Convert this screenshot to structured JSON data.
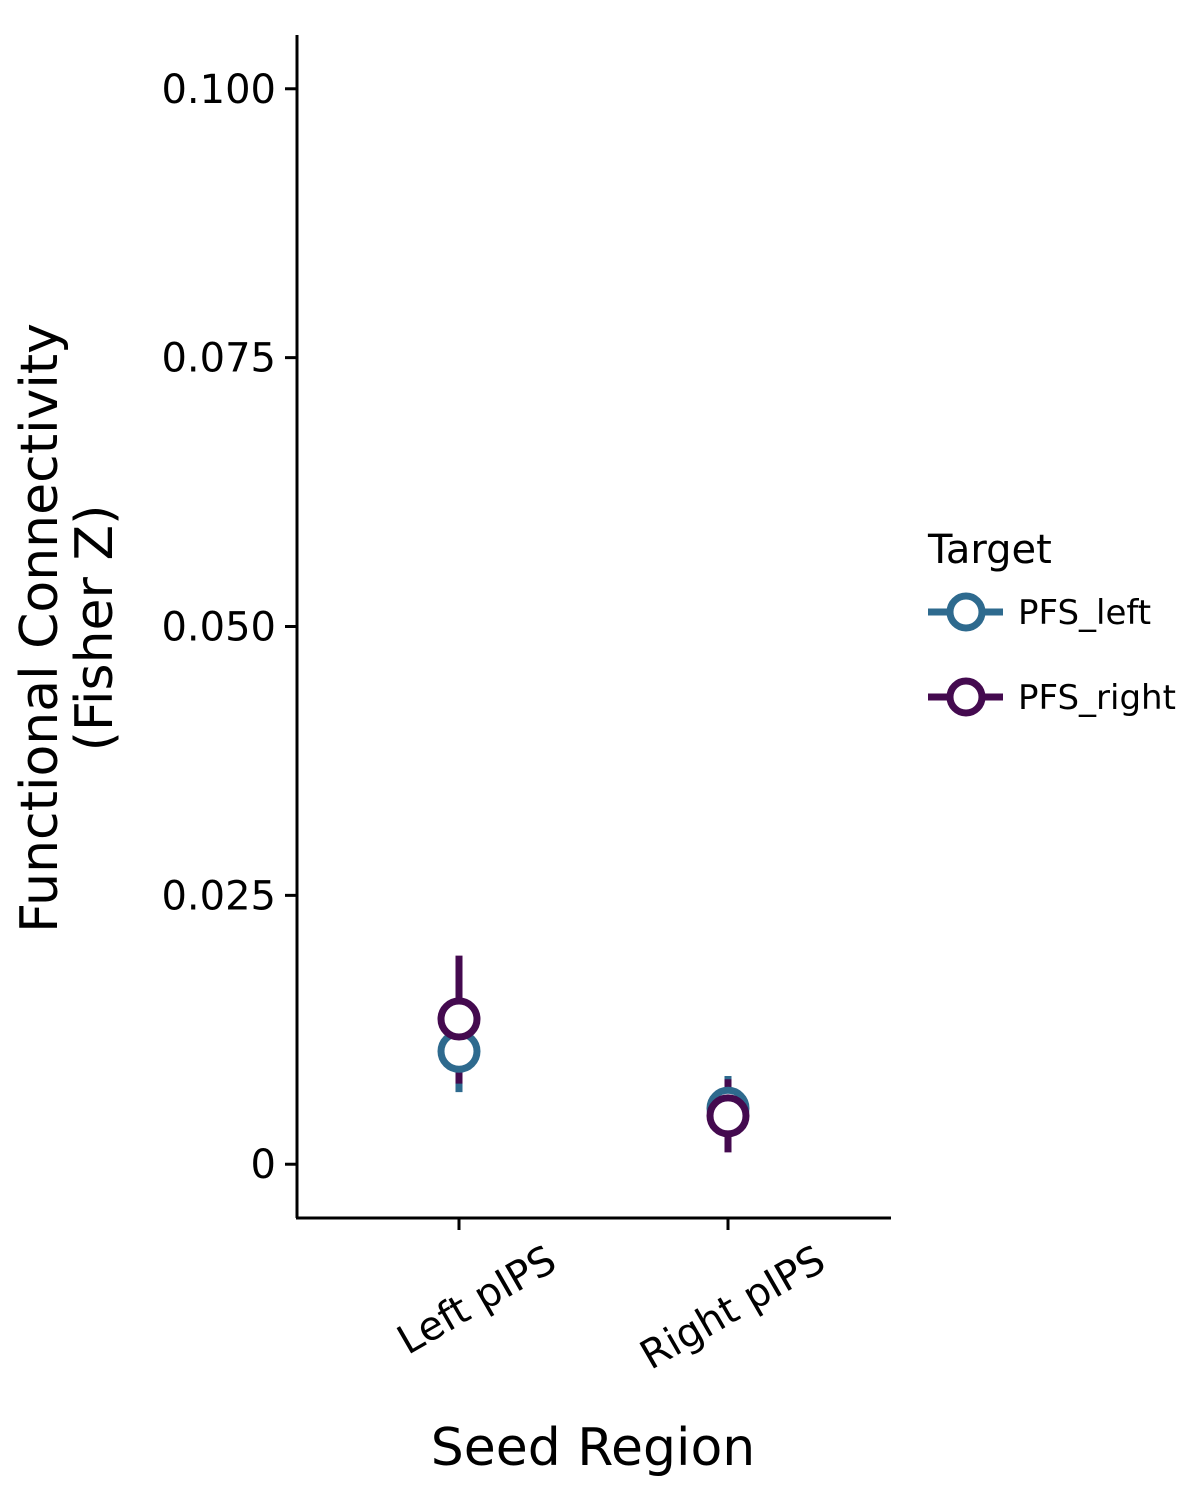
{
  "chart_data": {
    "type": "scatter",
    "xlabel": "Seed Region",
    "ylabel_lines": [
      "Functional Connectivity",
      "(Fisher Z)"
    ],
    "categories": [
      "Left pIPS",
      "Right pIPS"
    ],
    "ylim": [
      -0.005,
      0.105
    ],
    "yticks": [
      0,
      0.025,
      0.05,
      0.075,
      0.1
    ],
    "ytick_labels": [
      "0",
      "0.025",
      "0.050",
      "0.075",
      "0.100"
    ],
    "grid": false,
    "legend": {
      "title": "Target",
      "placement": "right"
    },
    "series": [
      {
        "name": "PFS_left",
        "color": "#2E6A8E",
        "points": [
          {
            "category": "Left pIPS",
            "y": 0.0105,
            "lo": 0.0067,
            "hi": 0.0145
          },
          {
            "category": "Right pIPS",
            "y": 0.0052,
            "lo": 0.0022,
            "hi": 0.0082
          }
        ]
      },
      {
        "name": "PFS_right",
        "color": "#440A4F",
        "points": [
          {
            "category": "Left pIPS",
            "y": 0.0135,
            "lo": 0.0075,
            "hi": 0.0194
          },
          {
            "category": "Right pIPS",
            "y": 0.0045,
            "lo": 0.0011,
            "hi": 0.0079
          }
        ]
      }
    ]
  }
}
